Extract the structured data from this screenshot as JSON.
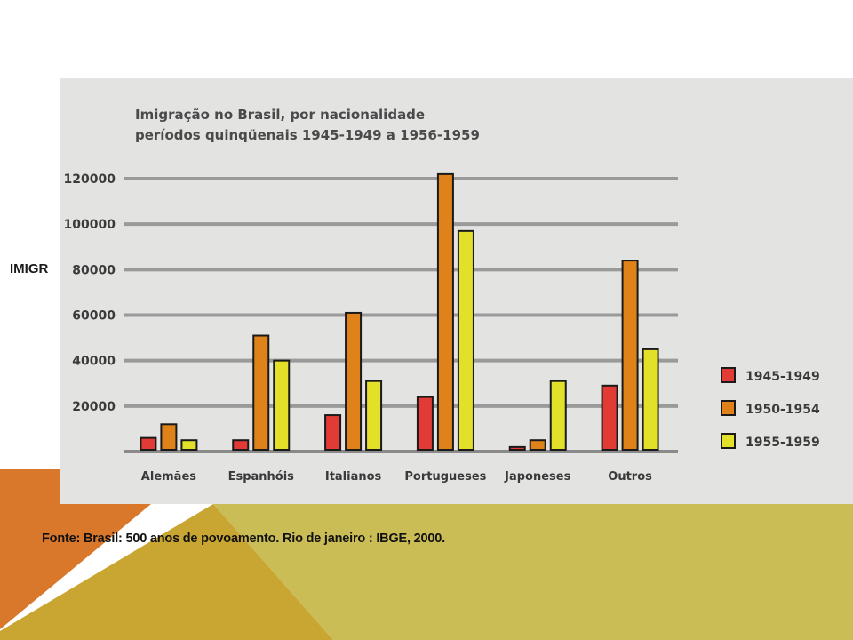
{
  "slide": {
    "label": "IMIGR",
    "source": "Fonte: Brasil: 500 anos de povoamento. Rio de janeiro : IBGE, 2000."
  },
  "colors": {
    "background": "#ffffff",
    "panel": "#e3e3e2",
    "orange_shape": "#d9772a",
    "gold_shape": "#c9a532",
    "olive_shape": "#cbbd55",
    "series_1945": "#e23a35",
    "series_1950": "#e0821a",
    "series_1955": "#e3e02a"
  },
  "chart_data": {
    "type": "bar",
    "title": "Imigração no Brasil, por nacionalidade",
    "subtitle": "períodos quinqüenais 1945-1949 a 1956-1959",
    "xlabel": "",
    "ylabel": "",
    "ylim": [
      0,
      120000
    ],
    "yticks": [
      "20000",
      "40000",
      "60000",
      "80000",
      "100000",
      "120000"
    ],
    "grid": true,
    "legend_position": "right",
    "categories": [
      "Alemães",
      "Espanhóis",
      "Italianos",
      "Portugueses",
      "Japoneses",
      "Outros"
    ],
    "series": [
      {
        "name": "1945-1949",
        "color": "#e23a35",
        "values": [
          6000,
          5000,
          16000,
          24000,
          2000,
          29000
        ]
      },
      {
        "name": "1950-1954",
        "color": "#e0821a",
        "values": [
          12000,
          51000,
          61000,
          122000,
          5000,
          84000
        ]
      },
      {
        "name": "1955-1959",
        "color": "#e3e02a",
        "values": [
          5000,
          40000,
          31000,
          97000,
          31000,
          45000
        ]
      }
    ]
  }
}
